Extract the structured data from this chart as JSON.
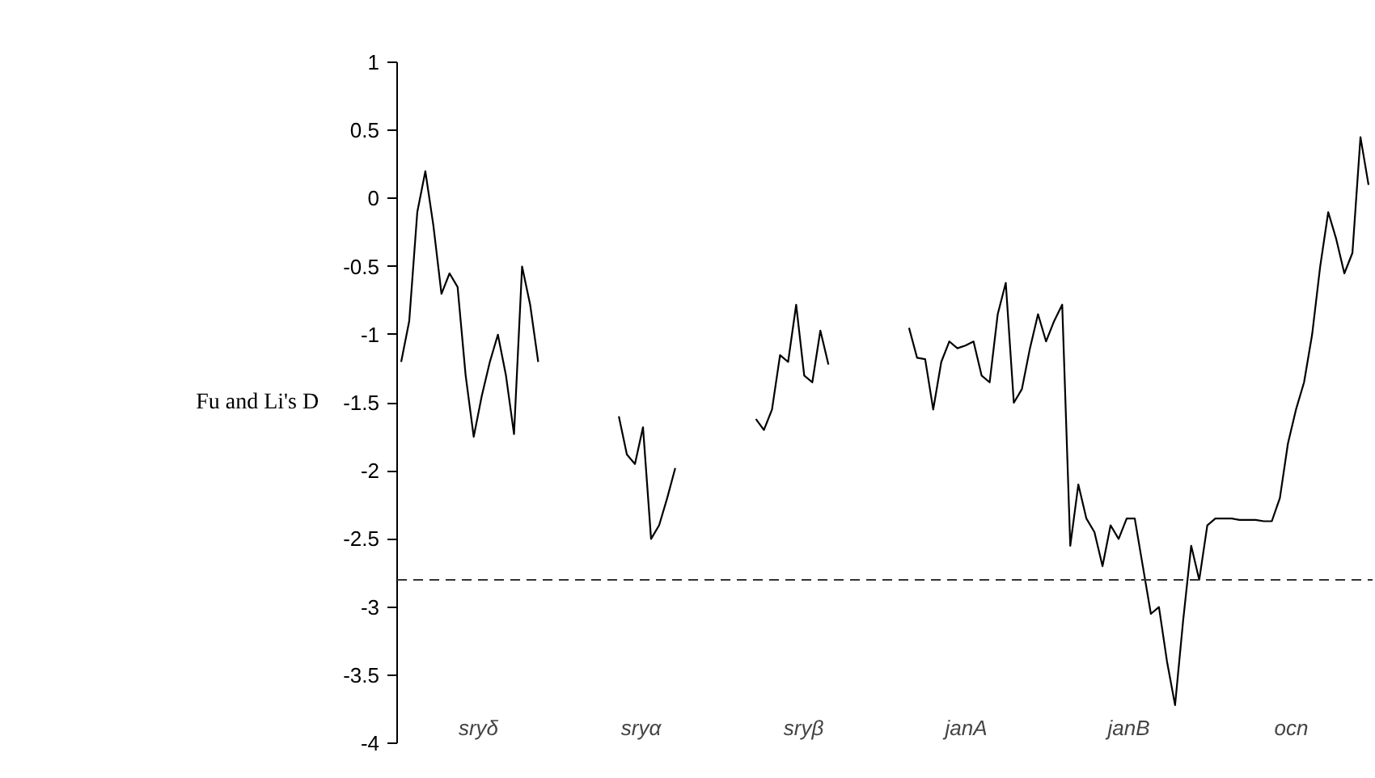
{
  "chart_data": {
    "type": "line",
    "ylabel": "Fu and Li's D",
    "categories": [
      null,
      null,
      null,
      null,
      null,
      null,
      null,
      null,
      null,
      null,
      null,
      null,
      null,
      null,
      null,
      null,
      null,
      null,
      null,
      null,
      null,
      null,
      null,
      null,
      null,
      null,
      null,
      null,
      null,
      null,
      null,
      null,
      null,
      null,
      null,
      null,
      null,
      null,
      null,
      null,
      null,
      null,
      null,
      null,
      null,
      null,
      null,
      null,
      null,
      null,
      null,
      null,
      null,
      null,
      null,
      null,
      null,
      null,
      null,
      null,
      null,
      null,
      null,
      null,
      null,
      null,
      null,
      null,
      null,
      null,
      null,
      null,
      null,
      null,
      null,
      null,
      null,
      null,
      null,
      null,
      null,
      null,
      null,
      null,
      null,
      null,
      null,
      null,
      null,
      null,
      null,
      null,
      null,
      null,
      null,
      null,
      null,
      null,
      null,
      null,
      null,
      null,
      null,
      null,
      null,
      null,
      null,
      null,
      null,
      null,
      null,
      null,
      null,
      null,
      null,
      null,
      null,
      null,
      null,
      null,
      null
    ],
    "series": [
      {
        "color": "#000000",
        "values": [
          -1.2,
          -0.9,
          -0.1,
          0.2,
          -0.2,
          -0.7,
          -0.55,
          -0.65,
          -1.3,
          -1.75,
          -1.45,
          -1.2,
          -1.0,
          -1.3,
          -1.73,
          -0.5,
          -0.78,
          -1.2,
          null,
          null,
          null,
          null,
          null,
          null,
          null,
          null,
          null,
          -1.6,
          -1.88,
          -1.95,
          -1.68,
          -2.5,
          -2.4,
          -2.2,
          -1.98,
          null,
          null,
          null,
          null,
          null,
          null,
          null,
          null,
          null,
          -1.62,
          -1.7,
          -1.55,
          -1.15,
          -1.2,
          -0.78,
          -1.3,
          -1.35,
          -0.97,
          -1.22,
          null,
          null,
          null,
          null,
          null,
          null,
          null,
          null,
          null,
          -0.95,
          -1.17,
          -1.18,
          -1.55,
          -1.2,
          -1.05,
          -1.1,
          -1.08,
          -1.05,
          -1.3,
          -1.35,
          -0.85,
          -0.62,
          -1.5,
          -1.4,
          -1.1,
          -0.85,
          -1.05,
          -0.9,
          -0.78,
          -2.55,
          -2.1,
          -2.35,
          -2.45,
          -2.7,
          -2.4,
          -2.5,
          -2.35,
          -2.35,
          -2.7,
          -3.05,
          -3.0,
          -3.4,
          -3.72,
          -3.1,
          -2.55,
          -2.8,
          -2.4,
          -2.35,
          -2.35,
          -2.35,
          -2.36,
          -2.36,
          -2.36,
          -2.37,
          -2.37,
          -2.2,
          -1.8,
          -1.55,
          -1.35,
          -1.0,
          -0.5,
          -0.1,
          -0.3,
          -0.55,
          -0.4,
          0.45,
          0.1
        ]
      }
    ],
    "ylim": [
      -4,
      1
    ],
    "yticks": [
      -4,
      -3.5,
      -3,
      -2.5,
      -2,
      -1.5,
      -1,
      -0.5,
      0,
      0.5,
      1
    ],
    "ref_lines": [
      {
        "axis": "y",
        "value": -2.8,
        "line_style": "dashed",
        "color": "#333333"
      }
    ],
    "annotations": [
      "sryδ",
      "sryα",
      "sryβ",
      "janA",
      "janB",
      "ocn"
    ],
    "tick_labels": "y",
    "grid": false,
    "marker": "none",
    "line_style": "solid"
  }
}
